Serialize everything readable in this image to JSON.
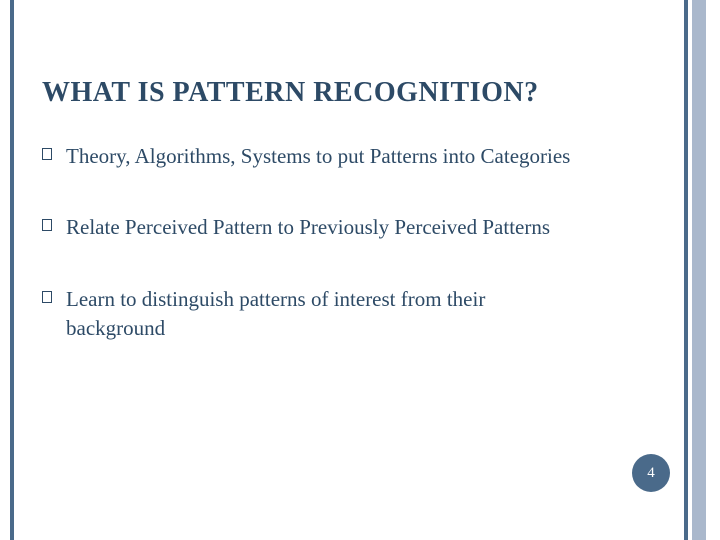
{
  "slide": {
    "title": "WHAT IS PATTERN RECOGNITION?",
    "bullets": [
      "Theory, Algorithms, Systems to put Patterns into Categories",
      "Relate Perceived Pattern to Previously Perceived Patterns",
      "Learn to distinguish patterns of interest from their background"
    ],
    "page_number": "4"
  },
  "style": {
    "background_color": "#ffffff",
    "accent_color": "#4a6a8a",
    "secondary_accent": "#aab8cc",
    "title_color": "#2d4a66",
    "body_color": "#2d4a66",
    "title_fontsize": 28,
    "body_fontsize": 21,
    "font_family": "Georgia, serif",
    "badge_bg": "#4a6a8a",
    "badge_fg": "#ffffff",
    "badge_diameter": 38
  }
}
